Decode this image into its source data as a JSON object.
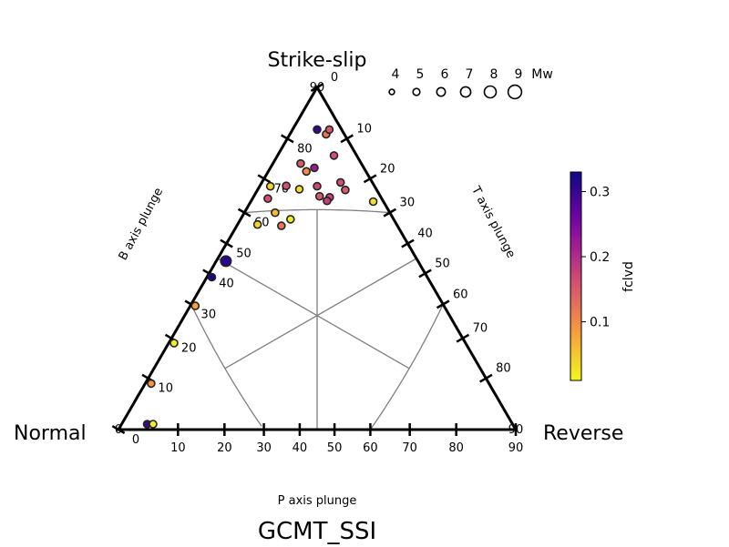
{
  "chart_data": {
    "type": "scatter",
    "title": "GCMT_SSI",
    "corner_labels": {
      "top": "Strike-slip",
      "left": "Normal",
      "right": "Reverse"
    },
    "axes": {
      "b": {
        "label": "B axis plunge",
        "ticks": [
          "0",
          "10",
          "20",
          "30",
          "40",
          "50",
          "60",
          "70",
          "80",
          "90"
        ]
      },
      "t": {
        "label": "T axis plunge",
        "ticks": [
          "0",
          "10",
          "20",
          "30",
          "40",
          "50",
          "60",
          "70",
          "80",
          "90"
        ]
      },
      "p": {
        "label": "P axis plunge",
        "ticks": [
          "90",
          "80",
          "70",
          "60",
          "50",
          "40",
          "30",
          "20",
          "10",
          "0"
        ]
      }
    },
    "size_legend": {
      "values": [
        "4",
        "5",
        "6",
        "7",
        "8",
        "9"
      ],
      "unit": "Mw"
    },
    "colorbar": {
      "label": "fclvd",
      "ticks": [
        "0.1",
        "0.2",
        "0.3"
      ],
      "range": [
        0.01,
        0.33
      ],
      "colormap": "plasma_r"
    },
    "points": [
      {
        "b": 81,
        "t": 6,
        "p": 3,
        "fclvd": 0.12
      },
      {
        "b": 82,
        "t": 6,
        "p": 2,
        "fclvd": 0.15
      },
      {
        "b": 83,
        "t": 4,
        "p": 4,
        "fclvd": 0.3
      },
      {
        "b": 78,
        "t": 10,
        "p": 4,
        "fclvd": 0.16
      },
      {
        "b": 74,
        "t": 7,
        "p": 11,
        "fclvd": 0.1
      },
      {
        "b": 76,
        "t": 5,
        "p": 11,
        "fclvd": 0.15
      },
      {
        "b": 74,
        "t": 8,
        "p": 9,
        "fclvd": 0.22
      },
      {
        "b": 71,
        "t": 15,
        "p": 6,
        "fclvd": 0.16
      },
      {
        "b": 70,
        "t": 11,
        "p": 11,
        "fclvd": 0.17
      },
      {
        "b": 70,
        "t": 8,
        "p": 15,
        "fclvd": 0.03
      },
      {
        "b": 70,
        "t": 5,
        "p": 17,
        "fclvd": 0.16
      },
      {
        "b": 68,
        "t": 2,
        "p": 20,
        "fclvd": 0.04
      },
      {
        "b": 67,
        "t": 3,
        "p": 23,
        "fclvd": 0.16
      },
      {
        "b": 68,
        "t": 17,
        "p": 6,
        "fclvd": 0.15
      },
      {
        "b": 68,
        "t": 13,
        "p": 12,
        "fclvd": 0.15
      },
      {
        "b": 66,
        "t": 15,
        "p": 10,
        "fclvd": 0.17
      },
      {
        "b": 65,
        "t": 15,
        "p": 11,
        "fclvd": 0.18
      },
      {
        "b": 66,
        "t": 25,
        "p": 2,
        "fclvd": 0.03
      },
      {
        "b": 59,
        "t": 6,
        "p": 23,
        "fclvd": 0.06
      },
      {
        "b": 58,
        "t": 10,
        "p": 21,
        "fclvd": 0.02
      },
      {
        "b": 56,
        "t": 9,
        "p": 24,
        "fclvd": 0.12
      },
      {
        "b": 56,
        "t": 4,
        "p": 29,
        "fclvd": 0.04
      },
      {
        "b": 45,
        "t": 2,
        "p": 44,
        "fclvd": 0.31,
        "mw": 8
      },
      {
        "b": 39,
        "t": 1,
        "p": 50,
        "fclvd": 0.32
      },
      {
        "b": 30,
        "t": 1,
        "p": 60,
        "fclvd": 0.08
      },
      {
        "b": 19,
        "t": 1,
        "p": 71,
        "fclvd": 0.02
      },
      {
        "b": 9,
        "t": 1,
        "p": 81,
        "fclvd": 0.09
      },
      {
        "b": 1,
        "t": 4,
        "p": 86,
        "fclvd": 0.3
      },
      {
        "b": 1,
        "t": 5,
        "p": 85,
        "fclvd": 0.02
      }
    ]
  }
}
